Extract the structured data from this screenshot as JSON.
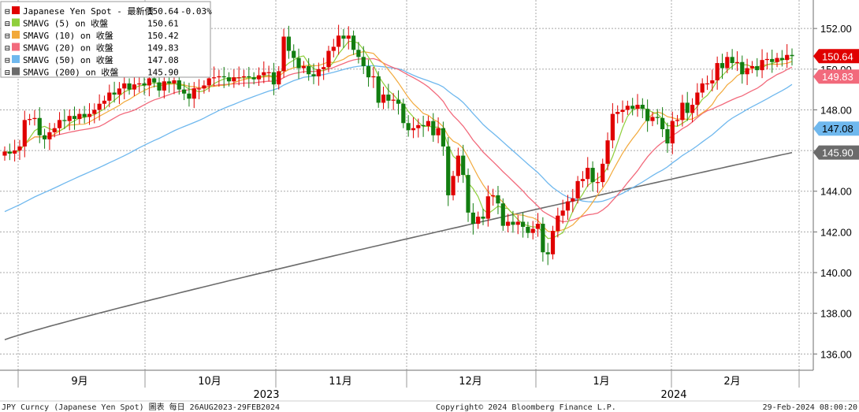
{
  "chart_data": {
    "type": "candlestick",
    "y_range": [
      135.2,
      153.4
    ],
    "y_ticks": [
      136,
      138,
      140,
      142,
      144,
      146,
      148,
      150,
      152
    ],
    "y_tick_labels": [
      "136.00",
      "138.00",
      "140.00",
      "142.00",
      "144.00",
      "146.00",
      "148.00",
      "150.00",
      "152.00"
    ],
    "months": [
      {
        "label": "9月",
        "pos": 101
      },
      {
        "label": "10月",
        "pos": 266
      },
      {
        "label": "11月",
        "pos": 432
      },
      {
        "label": "12月",
        "pos": 597
      },
      {
        "label": "1月",
        "pos": 763
      },
      {
        "label": "2月",
        "pos": 929
      }
    ],
    "years": [
      {
        "label": "2023",
        "pos": 338
      },
      {
        "label": "2024",
        "pos": 855
      }
    ],
    "grid": true,
    "legend_placement": "top-left",
    "legend": [
      {
        "label": "Japanese Yen Spot - 最新價",
        "value": "150.64",
        "change": "-0.03%",
        "color": "#e00000"
      },
      {
        "label": "SMAVG (5)  on 收盤",
        "value": "150.61",
        "color": "#8fcf3c"
      },
      {
        "label": "SMAVG (10)  on 收盤",
        "value": "150.42",
        "color": "#f2a93b"
      },
      {
        "label": "SMAVG (20)  on 收盤",
        "value": "149.83",
        "color": "#f26a7c"
      },
      {
        "label": "SMAVG (50)  on 收盤",
        "value": "147.08",
        "color": "#6fb8ee"
      },
      {
        "label": "SMAVG (200)  on 收盤",
        "value": "145.90",
        "color": "#6b6b6b"
      }
    ],
    "last_value_tags": [
      {
        "value": "150.64",
        "y": 150.64,
        "bg": "#e00000",
        "fg": "#ffffff"
      },
      {
        "value": "149.83",
        "y": 149.83,
        "bg": "#f26a7c",
        "fg": "#ffffff"
      },
      {
        "value": "147.08",
        "y": 147.08,
        "bg": "#6fb8ee",
        "fg": "#000000"
      },
      {
        "value": "145.90",
        "y": 145.9,
        "bg": "#6b6b6b",
        "fg": "#ffffff"
      }
    ],
    "candles_close": [
      145.95,
      145.85,
      146.0,
      146.2,
      147.5,
      147.55,
      147.6,
      146.75,
      146.55,
      146.9,
      147.1,
      147.5,
      147.45,
      147.7,
      147.55,
      147.8,
      147.65,
      147.8,
      148.0,
      148.3,
      148.45,
      148.85,
      148.75,
      149.05,
      149.3,
      149.0,
      149.25,
      149.3,
      149.2,
      149.55,
      149.35,
      148.95,
      149.4,
      149.3,
      149.45,
      149.0,
      148.8,
      148.55,
      149.05,
      149.05,
      149.2,
      149.55,
      149.6,
      149.65,
      149.6,
      149.4,
      149.6,
      149.6,
      149.65,
      149.6,
      149.5,
      149.7,
      149.85,
      149.85,
      149.25,
      149.9,
      151.6,
      150.9,
      150.55,
      150.05,
      150.15,
      149.75,
      149.65,
      150.0,
      150.1,
      150.9,
      151.1,
      151.65,
      151.5,
      151.65,
      150.95,
      150.6,
      150.15,
      149.6,
      149.65,
      148.35,
      148.75,
      148.45,
      148.5,
      148.3,
      147.35,
      147.0,
      147.1,
      147.25,
      147.2,
      147.45,
      146.75,
      147.1,
      146.2,
      143.8,
      144.75,
      145.75,
      144.8,
      142.95,
      142.4,
      142.75,
      142.65,
      143.75,
      143.8,
      143.4,
      142.3,
      142.5,
      142.35,
      142.5,
      142.25,
      141.95,
      142.15,
      142.4,
      141.0,
      140.9,
      142.05,
      142.8,
      143.05,
      143.5,
      143.65,
      144.5,
      144.6,
      145.15,
      144.45,
      144.45,
      145.35,
      146.5,
      147.8,
      147.9,
      148.0,
      148.2,
      148.05,
      148.25,
      148.05,
      147.45,
      147.65,
      147.6,
      147.05,
      146.35,
      147.45,
      147.5,
      148.35,
      147.85,
      148.25,
      148.85,
      149.3,
      149.3,
      149.45,
      150.3,
      150.05,
      150.6,
      150.3,
      150.35,
      149.75,
      150.05,
      150.15,
      149.95,
      150.45,
      150.5,
      150.35,
      150.55,
      150.45,
      150.7,
      150.64
    ],
    "sma_last": {
      "SMAVG (5)": 150.61,
      "SMAVG (10)": 150.42,
      "SMAVG (20)": 149.83,
      "SMAVG (50)": 147.08,
      "SMAVG (200)": 145.9
    }
  },
  "footer": {
    "left": "JPY Curncy (Japanese Yen Spot) 圖表  每日 26AUG2023-29FEB2024",
    "center": "Copyright© 2024 Bloomberg Finance L.P.",
    "right": "29-Feb-2024 08:00:20"
  }
}
